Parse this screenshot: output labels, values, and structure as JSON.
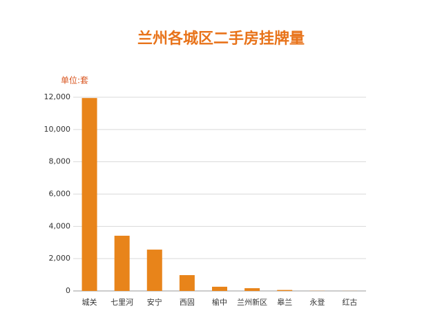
{
  "chart_data": {
    "type": "bar",
    "title": "兰州各城区二手房挂牌量",
    "unit_label": "单位:套",
    "categories": [
      "城关",
      "七里河",
      "安宁",
      "西固",
      "榆中",
      "兰州新区",
      "皋兰",
      "永登",
      "红古"
    ],
    "values": [
      11950,
      3420,
      2560,
      980,
      260,
      170,
      60,
      10,
      5
    ],
    "color": "#e8841a",
    "ylim": [
      0,
      12000
    ],
    "yticks": [
      0,
      {
        "value": 2000,
        "label": "2,000"
      },
      {
        "value": 4000,
        "label": "4,000"
      },
      {
        "value": 6000,
        "label": "6,000"
      },
      {
        "value": 8000,
        "label": "8,000"
      },
      {
        "value": 10000,
        "label": "10,000"
      },
      {
        "value": 12000,
        "label": "12,000"
      }
    ],
    "grid": true
  }
}
